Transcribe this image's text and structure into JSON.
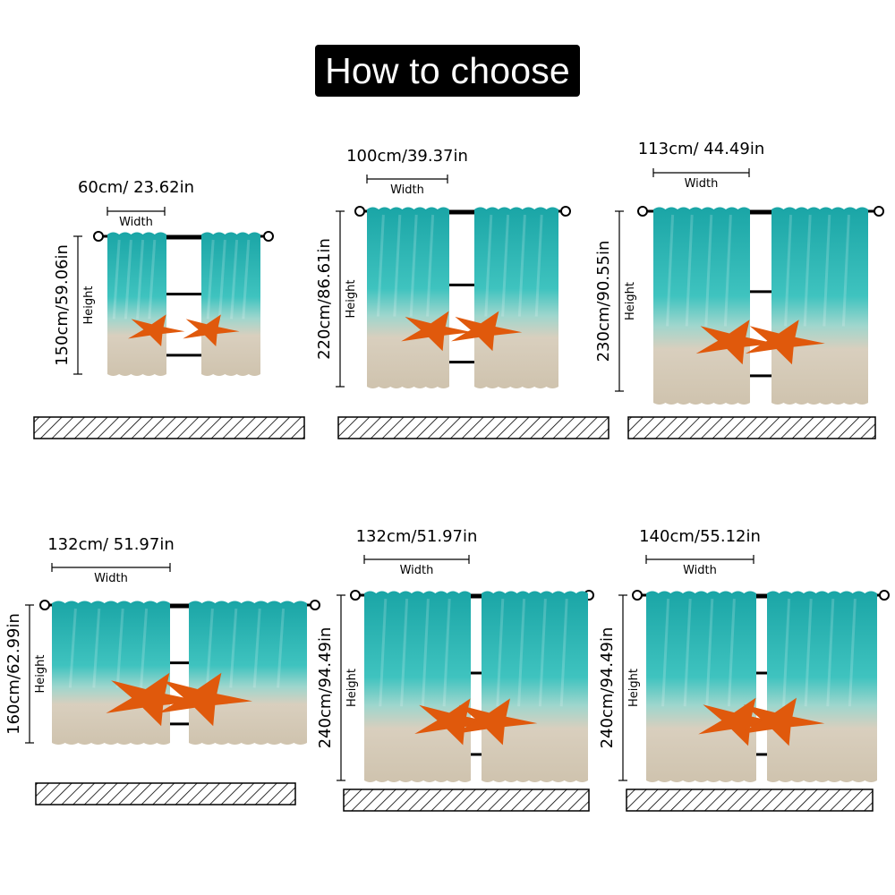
{
  "title": "How to choose",
  "width_word": "Width",
  "height_word": "Height",
  "colors": {
    "water_top": "#1aa5a6",
    "water_mid": "#3fc3bf",
    "sand": "#d9cfbe",
    "starfish": "#e0590c",
    "title_bg": "#000000",
    "title_text": "#ffffff"
  },
  "options": [
    {
      "width": "60cm/ 23.62in",
      "height": "150cm/59.06in"
    },
    {
      "width": "100cm/39.37in",
      "height": "220cm/86.61in"
    },
    {
      "width": "113cm/ 44.49in",
      "height": "230cm/90.55in"
    },
    {
      "width": "132cm/ 51.97in",
      "height": "160cm/62.99in"
    },
    {
      "width": "132cm/51.97in",
      "height": "240cm/94.49in"
    },
    {
      "width": "140cm/55.12in",
      "height": "240cm/94.49in"
    }
  ]
}
